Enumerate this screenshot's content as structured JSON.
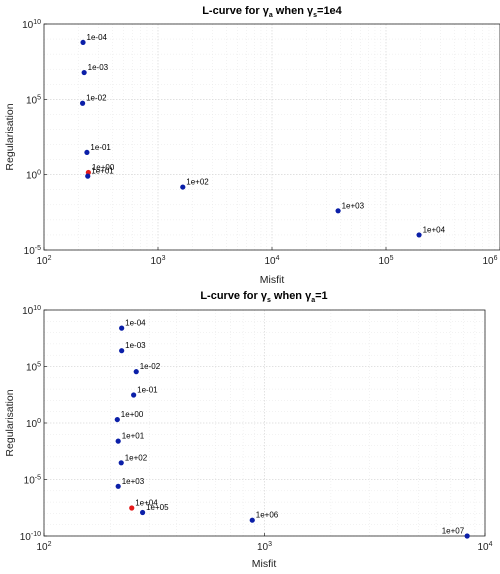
{
  "colors": {
    "point": "#0b1fa8",
    "highlight": "#e51a1a",
    "grid": "#d0d0d0",
    "frame": "#262626"
  },
  "chart_data": [
    {
      "type": "scatter",
      "title_prefix": "L-curve for ",
      "title_main_symbol": "γ",
      "title_main_sub": "a",
      "title_middle": " when ",
      "title_cond_symbol": "γ",
      "title_cond_sub": "s",
      "title_cond_value": "=1e4",
      "xlabel": "Misfit",
      "ylabel": "Regularisation",
      "xscale": "log",
      "yscale": "log",
      "xlim": [
        100,
        1000000
      ],
      "ylim": [
        1e-05,
        10000000000
      ],
      "x_ticks": [
        {
          "value": 100,
          "base": "10",
          "exp": "2"
        },
        {
          "value": 1000,
          "base": "10",
          "exp": "3"
        },
        {
          "value": 10000,
          "base": "10",
          "exp": "4"
        },
        {
          "value": 100000,
          "base": "10",
          "exp": "5"
        },
        {
          "value": 1000000,
          "base": "10",
          "exp": "6"
        }
      ],
      "y_ticks": [
        {
          "value": 1e-05,
          "base": "10",
          "exp": "-5"
        },
        {
          "value": 1,
          "base": "10",
          "exp": "0"
        },
        {
          "value": 100000,
          "base": "10",
          "exp": "5"
        },
        {
          "value": 10000000000,
          "base": "10",
          "exp": "10"
        }
      ],
      "grid": true,
      "points": [
        {
          "label": "1e-04",
          "x": 220,
          "y": 600000000,
          "highlight": false
        },
        {
          "label": "1e-03",
          "x": 225,
          "y": 6000000,
          "highlight": false
        },
        {
          "label": "1e-02",
          "x": 218,
          "y": 55000,
          "highlight": false
        },
        {
          "label": "1e-01",
          "x": 238,
          "y": 30,
          "highlight": false
        },
        {
          "label": "1e+00",
          "x": 245,
          "y": 1.4,
          "highlight": true
        },
        {
          "label": "1e+01",
          "x": 242,
          "y": 0.8,
          "highlight": false
        },
        {
          "label": "1e+02",
          "x": 1650,
          "y": 0.15,
          "highlight": false
        },
        {
          "label": "1e+03",
          "x": 38000,
          "y": 0.004,
          "highlight": false
        },
        {
          "label": "1e+04",
          "x": 195000,
          "y": 0.0001,
          "highlight": false
        }
      ]
    },
    {
      "type": "scatter",
      "title_prefix": "L-curve for ",
      "title_main_symbol": "γ",
      "title_main_sub": "s",
      "title_middle": " when ",
      "title_cond_symbol": "γ",
      "title_cond_sub": "a",
      "title_cond_value": "=1",
      "xlabel": "Misfit",
      "ylabel": "Regularisation",
      "xscale": "log",
      "yscale": "log",
      "xlim": [
        100,
        10000
      ],
      "ylim": [
        1e-10,
        10000000000
      ],
      "x_ticks": [
        {
          "value": 100,
          "base": "10",
          "exp": "2"
        },
        {
          "value": 1000,
          "base": "10",
          "exp": "3"
        },
        {
          "value": 10000,
          "base": "10",
          "exp": "4"
        }
      ],
      "y_ticks": [
        {
          "value": 1e-10,
          "base": "10",
          "exp": "-10"
        },
        {
          "value": 1e-05,
          "base": "10",
          "exp": "-5"
        },
        {
          "value": 1,
          "base": "10",
          "exp": "0"
        },
        {
          "value": 100000,
          "base": "10",
          "exp": "5"
        },
        {
          "value": 10000000000,
          "base": "10",
          "exp": "10"
        }
      ],
      "grid": true,
      "points": [
        {
          "label": "1e-04",
          "x": 225,
          "y": 250000000,
          "highlight": false
        },
        {
          "label": "1e-03",
          "x": 225,
          "y": 2500000,
          "highlight": false
        },
        {
          "label": "1e-02",
          "x": 262,
          "y": 35000,
          "highlight": false
        },
        {
          "label": "1e-01",
          "x": 255,
          "y": 300,
          "highlight": false
        },
        {
          "label": "1e+00",
          "x": 215,
          "y": 2,
          "highlight": false
        },
        {
          "label": "1e+01",
          "x": 217,
          "y": 0.025,
          "highlight": false
        },
        {
          "label": "1e+02",
          "x": 224,
          "y": 0.0003,
          "highlight": false
        },
        {
          "label": "1e+03",
          "x": 217,
          "y": 2.5e-06,
          "highlight": false
        },
        {
          "label": "1e+04",
          "x": 250,
          "y": 3e-08,
          "highlight": true
        },
        {
          "label": "1e+05",
          "x": 280,
          "y": 1.2e-08,
          "highlight": false
        },
        {
          "label": "1e+06",
          "x": 880,
          "y": 2.5e-09,
          "highlight": false
        },
        {
          "label": "1e+07",
          "x": 8300,
          "y": 1e-10,
          "highlight": false
        }
      ]
    }
  ]
}
